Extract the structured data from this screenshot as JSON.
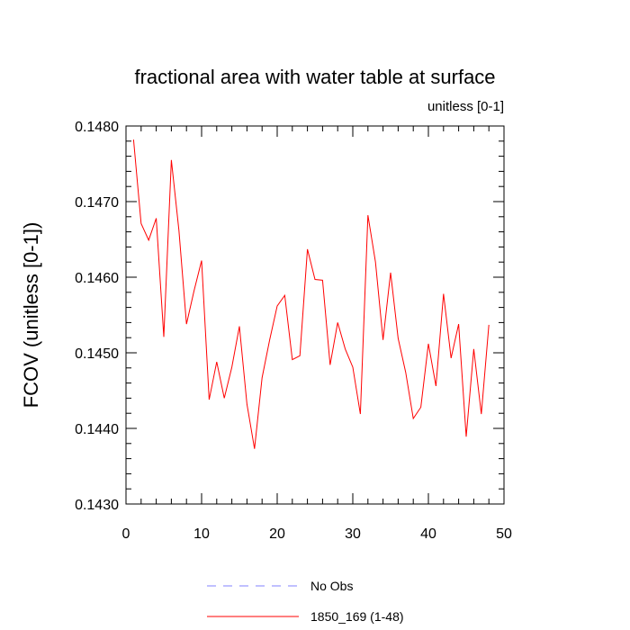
{
  "chart_data": {
    "type": "line",
    "title": "fractional area with water table at surface",
    "units_label": "unitless [0-1]",
    "ylabel": "FCOV  (unitless [0-1])",
    "xlabel": "",
    "xlim": [
      0,
      50
    ],
    "ylim": [
      0.143,
      0.148
    ],
    "x_ticks": [
      0,
      10,
      20,
      30,
      40,
      50
    ],
    "x_tick_labels": [
      "0",
      "10",
      "20",
      "30",
      "40",
      "50"
    ],
    "y_ticks": [
      0.143,
      0.144,
      0.145,
      0.146,
      0.147,
      0.148
    ],
    "y_tick_labels": [
      "0.1430",
      "0.1440",
      "0.1450",
      "0.1460",
      "0.1470",
      "0.1480"
    ],
    "grid": false,
    "legend_position": "bottom",
    "series": [
      {
        "name": "1850_169 (1-48)",
        "color": "#ff0000",
        "style": "solid",
        "x": [
          1,
          2,
          3,
          4,
          5,
          6,
          7,
          8,
          9,
          10,
          11,
          12,
          13,
          14,
          15,
          16,
          17,
          18,
          19,
          20,
          21,
          22,
          23,
          24,
          25,
          26,
          27,
          28,
          29,
          30,
          31,
          32,
          33,
          34,
          35,
          36,
          37,
          38,
          39,
          40,
          41,
          42,
          43,
          44,
          45,
          46,
          47,
          48
        ],
        "y": [
          0.14782,
          0.14671,
          0.14649,
          0.14678,
          0.14521,
          0.14755,
          0.14662,
          0.14538,
          0.14582,
          0.14622,
          0.14438,
          0.14488,
          0.1444,
          0.14481,
          0.14535,
          0.14432,
          0.14373,
          0.14467,
          0.14517,
          0.14562,
          0.14576,
          0.14491,
          0.14496,
          0.14637,
          0.14597,
          0.14596,
          0.14484,
          0.1454,
          0.14505,
          0.14481,
          0.14419,
          0.14682,
          0.1462,
          0.14517,
          0.14606,
          0.14519,
          0.14474,
          0.14413,
          0.14428,
          0.14512,
          0.14456,
          0.14578,
          0.14493,
          0.14538,
          0.14389,
          0.14505,
          0.14419,
          0.14537
        ]
      },
      {
        "name": "No Obs",
        "color": "#8080ff",
        "style": "dashed",
        "x": [],
        "y": []
      }
    ]
  }
}
